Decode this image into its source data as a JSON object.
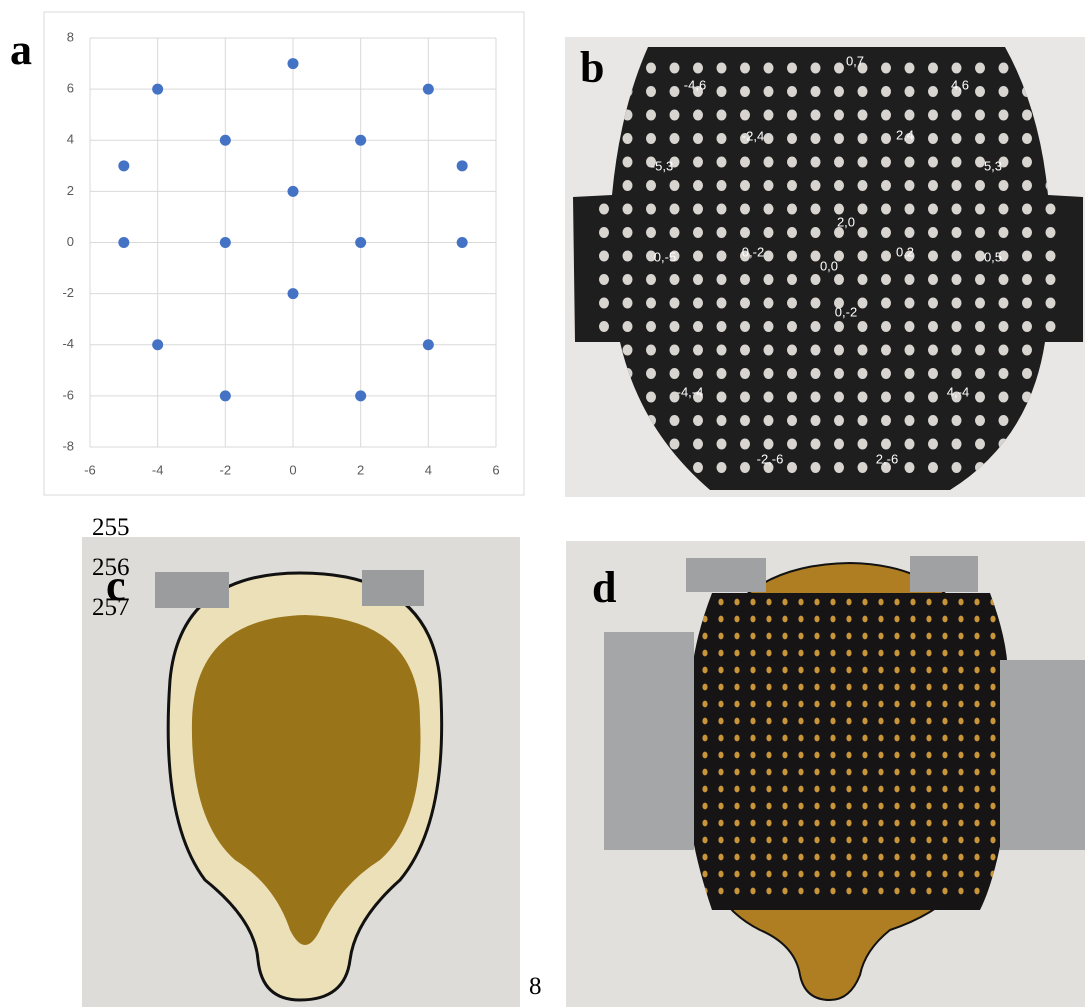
{
  "chart_data": {
    "type": "scatter",
    "color": "#4472c4",
    "grid": true,
    "x": [
      0,
      -4,
      4,
      -2,
      2,
      -5,
      5,
      0,
      -5,
      -2,
      2,
      5,
      0,
      -4,
      4,
      -2,
      2
    ],
    "values": [
      7,
      6,
      6,
      4,
      4,
      3,
      3,
      2,
      0,
      0,
      0,
      0,
      -2,
      -4,
      -4,
      -6,
      -6
    ],
    "xlim": [
      -6,
      6
    ],
    "xticks": [
      -6,
      -4,
      -2,
      0,
      2,
      4,
      6
    ],
    "ylim": [
      -8,
      8
    ],
    "yticks": [
      -8,
      -6,
      -4,
      -2,
      0,
      2,
      4,
      6,
      8
    ]
  },
  "panel_labels": [
    "a",
    "b",
    "c",
    "d"
  ],
  "line_numbers": [
    "255",
    "256",
    "257"
  ],
  "page_number": "8",
  "plate_labels": [
    "0,7",
    "-4,6",
    "4,6",
    "-2,4",
    "2,4",
    "-5,3",
    "5,3",
    "2,0",
    "0,-5",
    "0,-2",
    "0,0",
    "0,2",
    "0,5",
    "0,-2",
    "-4,-4",
    "4,-4",
    "-2,-6",
    "2,-6"
  ]
}
